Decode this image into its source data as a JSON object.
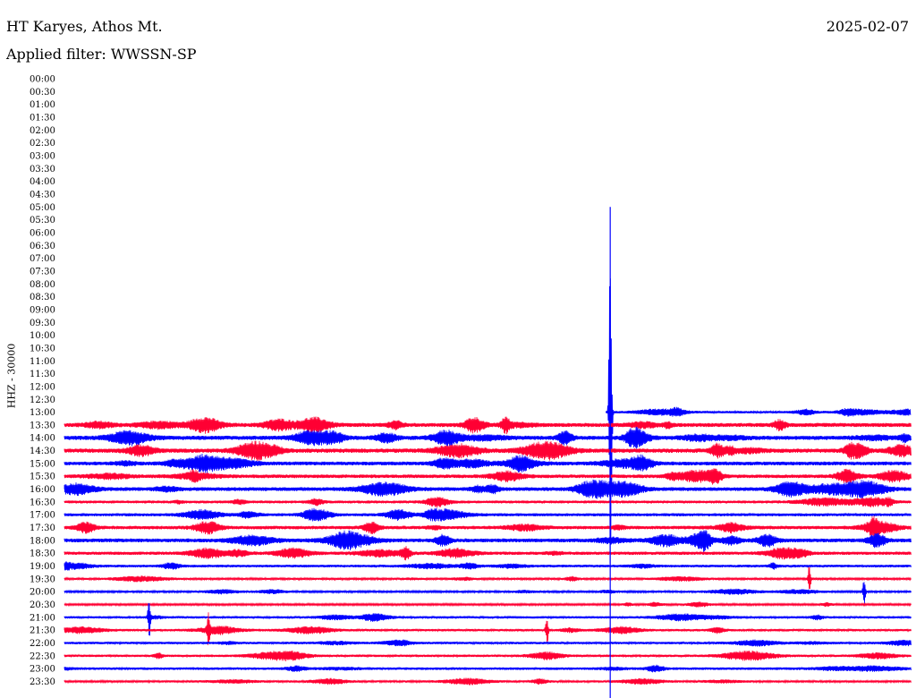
{
  "header": {
    "station": "HT Karyes, Athos Mt.",
    "filter": "Applied filter: WWSSN-SP",
    "date": "2025-02-07",
    "channel": "HHZ - 30000"
  },
  "chart_data": {
    "type": "line",
    "title": "HT Karyes, Athos Mt.",
    "subtitle": "Applied filter: WWSSN-SP",
    "ylabel": "HHZ - 30000",
    "row_interval_minutes": 30,
    "row_labels": [
      "00:00",
      "00:30",
      "01:00",
      "01:30",
      "02:00",
      "02:30",
      "03:00",
      "03:30",
      "04:00",
      "04:30",
      "05:00",
      "05:30",
      "06:00",
      "06:30",
      "07:00",
      "07:30",
      "08:00",
      "08:30",
      "09:00",
      "09:30",
      "10:00",
      "10:30",
      "11:00",
      "11:30",
      "12:00",
      "12:30",
      "13:00",
      "13:30",
      "14:00",
      "14:30",
      "15:00",
      "15:30",
      "16:00",
      "16:30",
      "17:00",
      "17:30",
      "18:00",
      "18:30",
      "19:00",
      "19:30",
      "20:00",
      "20:30",
      "21:00",
      "21:30",
      "22:00",
      "22:30",
      "23:00",
      "23:30"
    ],
    "trace_start": "13:00",
    "trace_start_offset_fraction": 0.64,
    "colors": [
      "#0000ff",
      "#ff0033"
    ],
    "row_activity": [
      0,
      0,
      0,
      0,
      0,
      0,
      0,
      0,
      0,
      0,
      0,
      0,
      0,
      0,
      0,
      0,
      0,
      0,
      0,
      0,
      0,
      0,
      0,
      0,
      0,
      0,
      0.35,
      0.75,
      0.8,
      0.8,
      0.7,
      0.65,
      0.7,
      0.45,
      0.5,
      0.6,
      0.7,
      0.55,
      0.4,
      0.25,
      0.25,
      0.22,
      0.35,
      0.35,
      0.35,
      0.35,
      0.4,
      0.3
    ],
    "events": [
      {
        "time": "13:00",
        "offset_fraction": 0.645,
        "peak_rows": 16,
        "note": "large transient"
      },
      {
        "time": "21:00",
        "offset_fraction": 0.1,
        "peak_rows": 1.5
      },
      {
        "time": "21:30",
        "offset_fraction": 0.17,
        "peak_rows": 1.2
      },
      {
        "time": "21:30",
        "offset_fraction": 0.57,
        "peak_rows": 1.0
      },
      {
        "time": "20:00",
        "offset_fraction": 0.945,
        "peak_rows": 1.0
      },
      {
        "time": "19:30",
        "offset_fraction": 0.88,
        "peak_rows": 1.0
      }
    ]
  }
}
